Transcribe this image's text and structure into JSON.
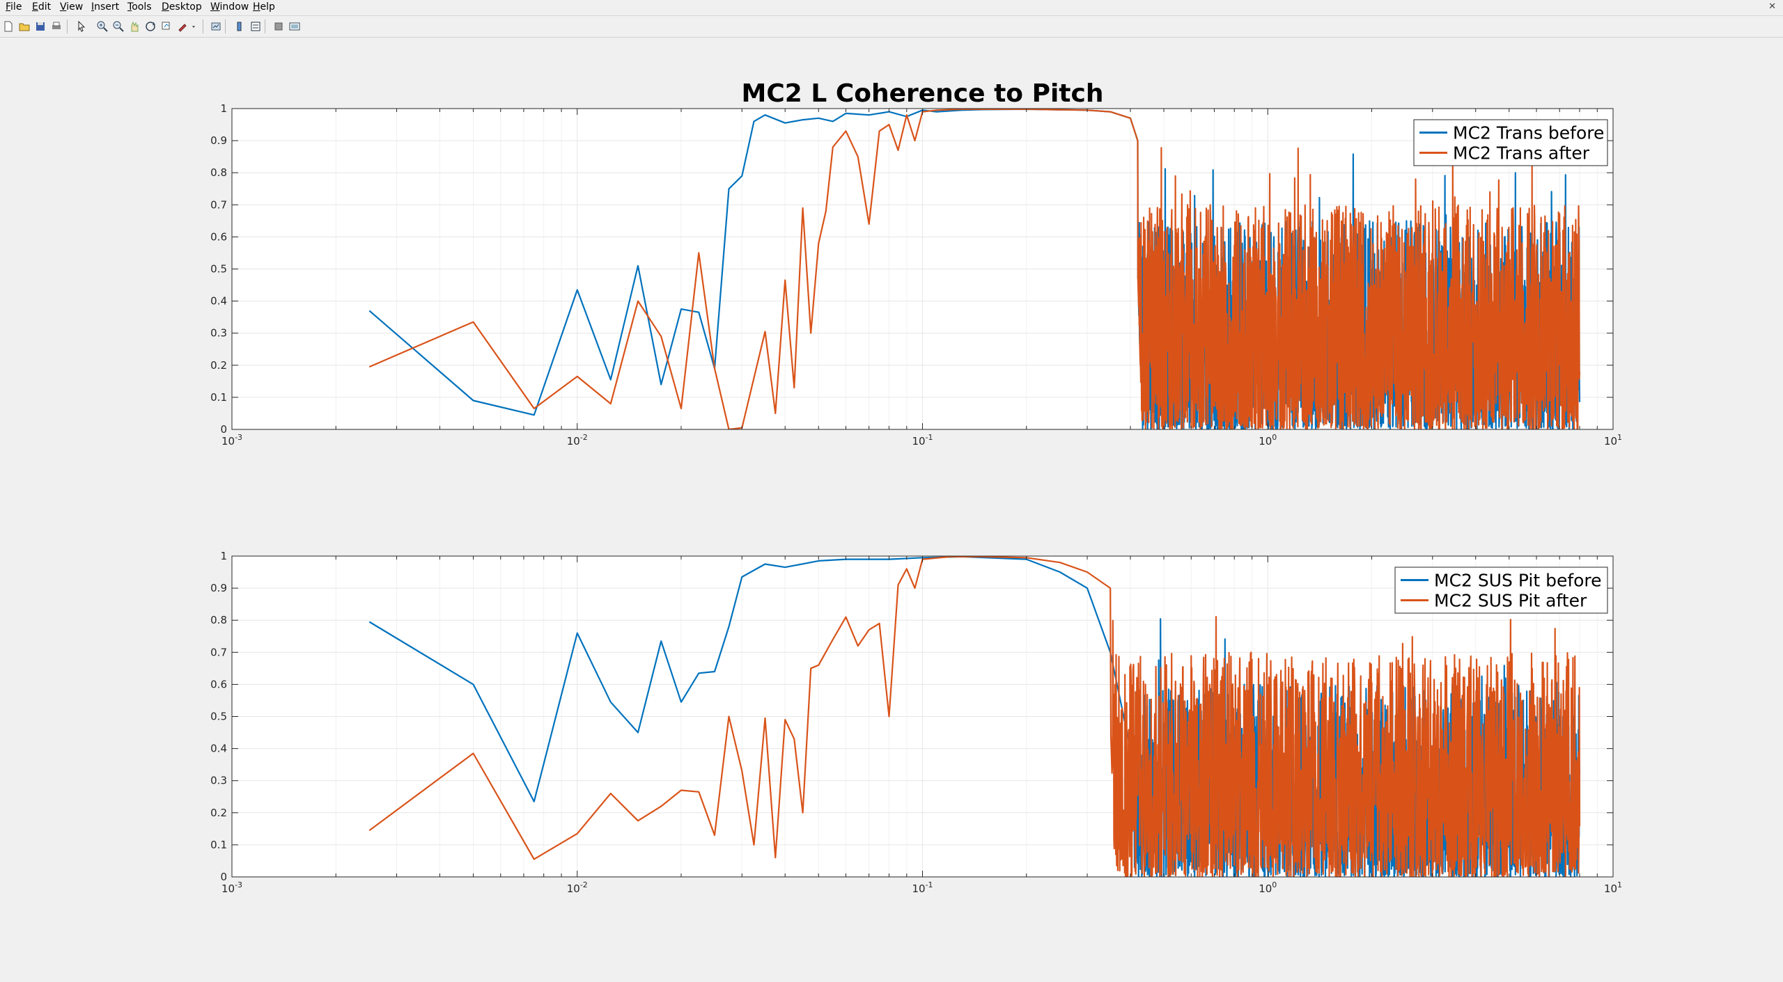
{
  "menu": [
    "File",
    "Edit",
    "View",
    "Insert",
    "Tools",
    "Desktop",
    "Window",
    "Help"
  ],
  "toolbar_icons": [
    "new-figure-icon",
    "open-file-icon",
    "save-icon",
    "print-icon",
    "pointer-icon",
    "zoom-in-icon",
    "zoom-out-icon",
    "pan-icon",
    "rotate-icon",
    "data-cursor-icon",
    "brush-icon",
    "brush-dropdown-icon",
    "link-plot-icon",
    "colorbar-icon",
    "legend-icon",
    "hide-plot-tools-icon",
    "show-plot-tools-icon"
  ],
  "colors": {
    "before": "#0072bd",
    "after": "#d95319",
    "axes_bg": "#ffffff",
    "figure_bg": "#f0f0f0",
    "grid": "#e6e6e6"
  },
  "chart_data": [
    {
      "type": "line",
      "title": "MC2 L Coherence to Pitch",
      "xscale": "log",
      "xlim": [
        0.001,
        10
      ],
      "ylim": [
        0,
        1
      ],
      "xticks": [
        0.001,
        0.01,
        0.1,
        1,
        10
      ],
      "xtick_labels": [
        {
          "base": "10",
          "exp": "-3"
        },
        {
          "base": "10",
          "exp": "-2"
        },
        {
          "base": "10",
          "exp": "-1"
        },
        {
          "base": "10",
          "exp": "0"
        },
        {
          "base": "10",
          "exp": "1"
        }
      ],
      "yticks": [
        0,
        0.1,
        0.2,
        0.3,
        0.4,
        0.5,
        0.6,
        0.7,
        0.8,
        0.9,
        1
      ],
      "ytick_labels": [
        "0",
        "0.1",
        "0.2",
        "0.3",
        "0.4",
        "0.5",
        "0.6",
        "0.7",
        "0.8",
        "0.9",
        "1"
      ],
      "grid": true,
      "legend": "top-right",
      "series": [
        {
          "name": "MC2 Trans before",
          "color": "#0072bd",
          "x": [
            0.0025,
            0.005,
            0.0075,
            0.01,
            0.0125,
            0.015,
            0.0175,
            0.02,
            0.0225,
            0.025,
            0.0275,
            0.03,
            0.0325,
            0.035,
            0.04,
            0.045,
            0.05,
            0.055,
            0.06,
            0.07,
            0.08,
            0.09,
            0.1,
            0.11,
            0.13,
            0.15,
            0.2,
            0.3,
            0.35,
            0.4,
            0.42
          ],
          "y": [
            0.37,
            0.09,
            0.045,
            0.435,
            0.155,
            0.51,
            0.14,
            0.375,
            0.365,
            0.19,
            0.75,
            0.79,
            0.96,
            0.98,
            0.955,
            0.965,
            0.97,
            0.96,
            0.985,
            0.98,
            0.99,
            0.975,
            0.995,
            0.99,
            0.995,
            0.997,
            0.998,
            0.995,
            0.99,
            0.97,
            0.9
          ],
          "noise": {
            "x_start": 0.42,
            "x_end": 8.0,
            "level_range": [
              0.0,
              0.65
            ],
            "peak": 0.95
          }
        },
        {
          "name": "MC2 Trans after",
          "color": "#d95319",
          "x": [
            0.0025,
            0.005,
            0.0075,
            0.01,
            0.0125,
            0.015,
            0.0175,
            0.02,
            0.0225,
            0.025,
            0.0275,
            0.03,
            0.035,
            0.0375,
            0.04,
            0.0425,
            0.045,
            0.0475,
            0.05,
            0.0525,
            0.055,
            0.06,
            0.065,
            0.07,
            0.075,
            0.08,
            0.085,
            0.09,
            0.095,
            0.1,
            0.11,
            0.13,
            0.2,
            0.3,
            0.35,
            0.4,
            0.42
          ],
          "y": [
            0.195,
            0.335,
            0.065,
            0.165,
            0.08,
            0.4,
            0.29,
            0.065,
            0.55,
            0.19,
            0.0,
            0.005,
            0.305,
            0.05,
            0.465,
            0.13,
            0.69,
            0.3,
            0.58,
            0.68,
            0.88,
            0.93,
            0.85,
            0.64,
            0.93,
            0.95,
            0.87,
            0.98,
            0.9,
            0.99,
            0.995,
            0.998,
            0.998,
            0.995,
            0.99,
            0.97,
            0.9
          ],
          "noise": {
            "x_start": 0.42,
            "x_end": 8.0,
            "level_range": [
              0.0,
              0.7
            ],
            "peak": 0.97
          }
        }
      ]
    },
    {
      "type": "line",
      "title": "",
      "xscale": "log",
      "xlim": [
        0.001,
        10
      ],
      "ylim": [
        0,
        1
      ],
      "xticks": [
        0.001,
        0.01,
        0.1,
        1,
        10
      ],
      "xtick_labels": [
        {
          "base": "10",
          "exp": "-3"
        },
        {
          "base": "10",
          "exp": "-2"
        },
        {
          "base": "10",
          "exp": "-1"
        },
        {
          "base": "10",
          "exp": "0"
        },
        {
          "base": "10",
          "exp": "1"
        }
      ],
      "yticks": [
        0,
        0.1,
        0.2,
        0.3,
        0.4,
        0.5,
        0.6,
        0.7,
        0.8,
        0.9,
        1
      ],
      "ytick_labels": [
        "0",
        "0.1",
        "0.2",
        "0.3",
        "0.4",
        "0.5",
        "0.6",
        "0.7",
        "0.8",
        "0.9",
        "1"
      ],
      "grid": true,
      "legend": "top-right",
      "series": [
        {
          "name": "MC2 SUS Pit before",
          "color": "#0072bd",
          "x": [
            0.0025,
            0.005,
            0.0075,
            0.01,
            0.0125,
            0.015,
            0.0175,
            0.02,
            0.0225,
            0.025,
            0.0275,
            0.03,
            0.035,
            0.04,
            0.05,
            0.06,
            0.08,
            0.1,
            0.13,
            0.2,
            0.25,
            0.3,
            0.35,
            0.4
          ],
          "y": [
            0.795,
            0.6,
            0.235,
            0.76,
            0.545,
            0.45,
            0.735,
            0.545,
            0.635,
            0.64,
            0.78,
            0.935,
            0.975,
            0.965,
            0.985,
            0.99,
            0.99,
            0.995,
            0.998,
            0.99,
            0.95,
            0.9,
            0.7,
            0.4
          ],
          "noise": {
            "x_start": 0.4,
            "x_end": 8.0,
            "level_range": [
              0.0,
              0.6
            ],
            "peak": 0.85
          }
        },
        {
          "name": "MC2 SUS Pit after",
          "color": "#d95319",
          "x": [
            0.0025,
            0.005,
            0.0075,
            0.01,
            0.0125,
            0.015,
            0.0175,
            0.02,
            0.0225,
            0.025,
            0.0275,
            0.03,
            0.0325,
            0.035,
            0.0375,
            0.04,
            0.0425,
            0.045,
            0.0475,
            0.05,
            0.055,
            0.06,
            0.065,
            0.07,
            0.075,
            0.08,
            0.085,
            0.09,
            0.095,
            0.1,
            0.12,
            0.15,
            0.2,
            0.25,
            0.3,
            0.35
          ],
          "y": [
            0.145,
            0.385,
            0.055,
            0.135,
            0.26,
            0.175,
            0.22,
            0.27,
            0.265,
            0.13,
            0.5,
            0.33,
            0.1,
            0.495,
            0.06,
            0.49,
            0.43,
            0.2,
            0.65,
            0.66,
            0.74,
            0.81,
            0.72,
            0.77,
            0.79,
            0.5,
            0.91,
            0.96,
            0.9,
            0.99,
            0.998,
            0.998,
            0.995,
            0.98,
            0.95,
            0.9
          ],
          "noise": {
            "x_start": 0.35,
            "x_end": 8.0,
            "level_range": [
              0.0,
              0.7
            ],
            "peak": 0.88
          }
        }
      ]
    }
  ]
}
